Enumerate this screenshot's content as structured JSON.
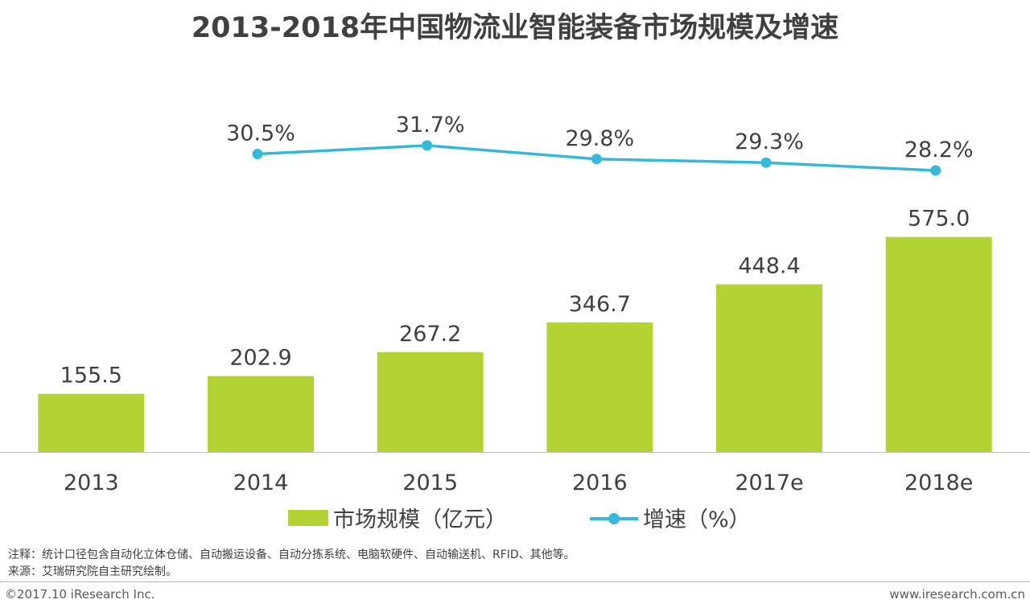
{
  "title": "2013-2018年中国物流业智能装备市场规模及增速",
  "colors": {
    "bar": "#b3d234",
    "line": "#35b9d9",
    "axis": "#bfbfbf"
  },
  "chart_data": {
    "type": "bar+line",
    "categories": [
      "2013",
      "2014",
      "2015",
      "2016",
      "2017e",
      "2018e"
    ],
    "series": [
      {
        "name": "市场规模（亿元）",
        "type": "bar",
        "values": [
          155.5,
          202.9,
          267.2,
          346.7,
          448.4,
          575.0
        ],
        "labels": [
          "155.5",
          "202.9",
          "267.2",
          "346.7",
          "448.4",
          "575.0"
        ]
      },
      {
        "name": "增速（%）",
        "type": "line",
        "values": [
          null,
          30.5,
          31.7,
          29.8,
          29.3,
          28.2
        ],
        "labels": [
          "",
          "30.5%",
          "31.7%",
          "29.8%",
          "29.3%",
          "28.2%"
        ]
      }
    ],
    "ylim_bar": [
      0,
      600
    ],
    "ylim_line": [
      0,
      100
    ]
  },
  "legend": {
    "bar_label": "市场规模（亿元）",
    "line_label": "增速（%）"
  },
  "notes": {
    "note": "注释：统计口径包含自动化立体仓储、自动搬运设备、自动分拣系统、电脑软硬件、自动输送机、RFID、其他等。",
    "source": "来源：艾瑞研究院自主研究绘制。"
  },
  "footer": {
    "copyright": "©2017.10 iResearch Inc.",
    "website": "www.iresearch.com.cn"
  }
}
